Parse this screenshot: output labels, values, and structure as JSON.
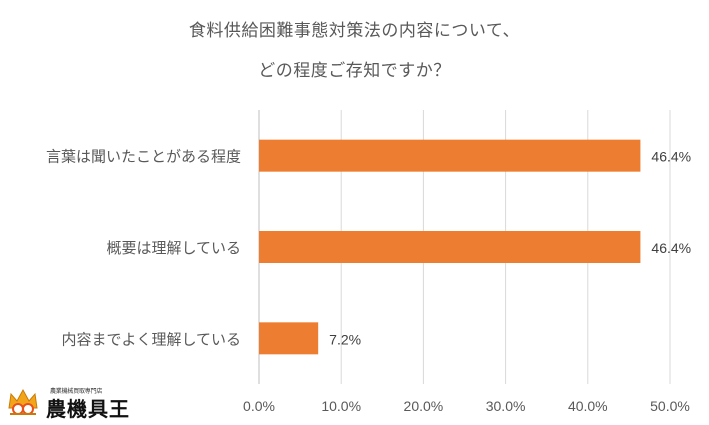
{
  "title_lines": [
    "食料供給困難事態対策法の内容について、",
    "どの程度ご存知ですか？"
  ],
  "logo": {
    "text": "農機具王",
    "subtext": "農業機械買取専門店"
  },
  "colors": {
    "bar": "#ED7D31",
    "grid": "#D9D9D9",
    "text": "#595959"
  },
  "chart_data": {
    "type": "bar",
    "orientation": "horizontal",
    "categories": [
      "言葉は聞いたことがある程度",
      "概要は理解している",
      "内容までよく理解している"
    ],
    "values": [
      46.4,
      46.4,
      7.2
    ],
    "data_labels": [
      "46.4%",
      "46.4%",
      "7.2%"
    ],
    "xlim": [
      0,
      50
    ],
    "xticks": [
      "0.0%",
      "10.0%",
      "20.0%",
      "30.0%",
      "40.0%",
      "50.0%"
    ],
    "grid": true,
    "legend": "none"
  }
}
